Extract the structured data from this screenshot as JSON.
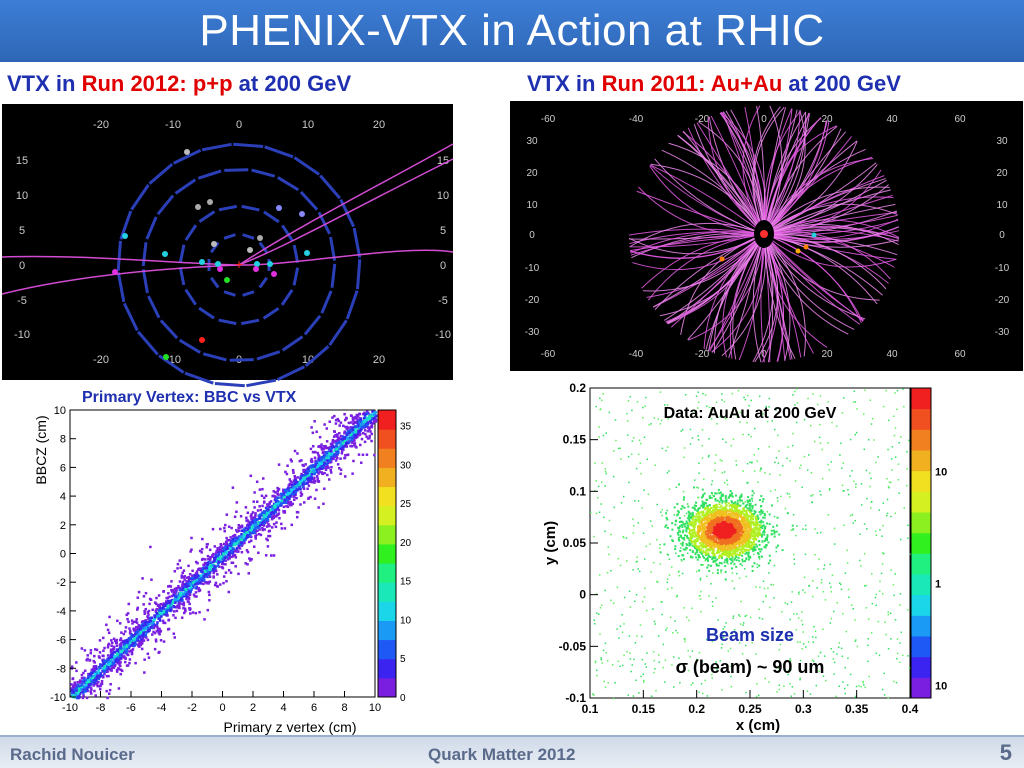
{
  "slide": {
    "title": "PHENIX-VTX in Action at RHIC",
    "left_header": {
      "p1": "VTX in ",
      "p2": "Run 2012: p+p",
      "p3": " at 200 GeV"
    },
    "right_header": {
      "p1": "VTX in ",
      "p2": "Run 2011: Au+Au",
      "p3": " at 200 GeV"
    },
    "footer": {
      "author": "Rachid Nouicer",
      "conference": "Quark Matter 2012",
      "page": "5"
    }
  },
  "colors": {
    "title_bar": "#2e66b6",
    "header_blue": "#1e2fb0",
    "header_red": "#e00000",
    "track_magenta": "#e040e0"
  },
  "event_display_pp": {
    "x_ticks": [
      "-20",
      "-10",
      "0",
      "10",
      "20"
    ],
    "y_ticks": [
      "15",
      "10",
      "5",
      "0",
      "-5",
      "-10"
    ]
  },
  "event_display_auau": {
    "x_ticks": [
      "-60",
      "-40",
      "-20",
      "0",
      "20",
      "40",
      "60"
    ],
    "y_ticks": [
      "30",
      "20",
      "10",
      "0",
      "-10",
      "-20",
      "-30"
    ]
  },
  "chart_data": [
    {
      "type": "heatmap",
      "title": "Primary Vertex: BBC vs VTX",
      "xlabel": "Primary z vertex (cm)",
      "ylabel": "BBCZ (cm)",
      "xlim": [
        -10,
        10
      ],
      "ylim": [
        -10,
        10
      ],
      "x_ticks": [
        "-10",
        "-8",
        "-6",
        "-4",
        "-2",
        "0",
        "2",
        "4",
        "6",
        "8",
        "10"
      ],
      "y_ticks": [
        "10",
        "8",
        "6",
        "4",
        "2",
        "0",
        "-2",
        "-4",
        "-6",
        "-8",
        "-10"
      ],
      "colorbar_ticks": [
        "35",
        "30",
        "25",
        "20",
        "15",
        "10",
        "5",
        "0"
      ],
      "colorbar_range": [
        0,
        37
      ],
      "correlation": "y = x"
    },
    {
      "type": "heatmap",
      "title": "Data: AuAu at 200 GeV",
      "xlabel": "x (cm)",
      "ylabel": "y (cm)",
      "xlim": [
        0.1,
        0.4
      ],
      "ylim": [
        -0.1,
        0.2
      ],
      "x_ticks": [
        "0.1",
        "0.15",
        "0.2",
        "0.25",
        "0.3",
        "0.35",
        "0.4"
      ],
      "y_ticks": [
        "0.2",
        "0.15",
        "0.1",
        "0.05",
        "0",
        "-0.05",
        "-0.1"
      ],
      "colorbar_ticks": [
        "10",
        "1",
        "10"
      ],
      "colorbar_scale": "log",
      "beam_center": [
        0.225,
        0.063
      ],
      "annotation_title": "Beam size",
      "annotation_sigma": "σ (beam) ~ 90 um"
    }
  ]
}
